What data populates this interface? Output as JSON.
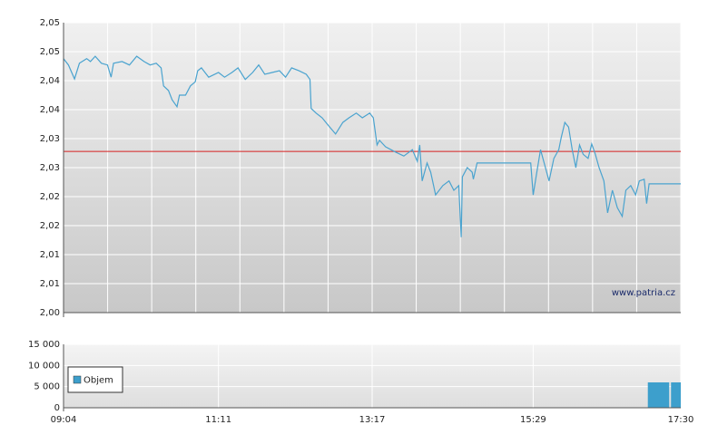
{
  "chart_data": [
    {
      "type": "line",
      "color": "#4aa3cf",
      "xlim": [
        "09:04",
        "17:30"
      ],
      "ylim": [
        2.0,
        2.05
      ],
      "yticks": [
        {
          "value": 2.0,
          "label": "2,00"
        },
        {
          "value": 2.005,
          "label": "2,01"
        },
        {
          "value": 2.01,
          "label": "2,01"
        },
        {
          "value": 2.015,
          "label": "2,02"
        },
        {
          "value": 2.02,
          "label": "2,02"
        },
        {
          "value": 2.025,
          "label": "2,03"
        },
        {
          "value": 2.03,
          "label": "2,03"
        },
        {
          "value": 2.035,
          "label": "2,04"
        },
        {
          "value": 2.04,
          "label": "2,04"
        },
        {
          "value": 2.045,
          "label": "2,05"
        },
        {
          "value": 2.05,
          "label": "2,05"
        }
      ],
      "grid": true,
      "reference_line": 2.0278,
      "reference_color": "#d62020",
      "watermark": "www.patria.cz",
      "x": [
        "09:04",
        "09:08",
        "09:13",
        "09:17",
        "09:23",
        "09:26",
        "09:30",
        "09:35",
        "09:40",
        "09:43",
        "09:45",
        "09:52",
        "09:58",
        "10:04",
        "10:10",
        "10:15",
        "10:20",
        "10:24",
        "10:26",
        "10:30",
        "10:33",
        "10:37",
        "10:39",
        "10:44",
        "10:48",
        "10:52",
        "10:54",
        "10:57",
        "11:03",
        "11:11",
        "11:16",
        "11:22",
        "11:27",
        "11:33",
        "11:39",
        "11:44",
        "11:49",
        "11:55",
        "12:01",
        "12:06",
        "12:11",
        "12:17",
        "12:23",
        "12:26",
        "12:27",
        "12:31",
        "12:36",
        "12:41",
        "12:47",
        "12:53",
        "12:58",
        "13:04",
        "13:09",
        "13:15",
        "13:18",
        "13:21",
        "13:23",
        "13:28",
        "13:36",
        "13:43",
        "13:50",
        "13:54",
        "13:56",
        "13:58",
        "14:02",
        "14:05",
        "14:09",
        "14:15",
        "14:20",
        "14:24",
        "14:28",
        "14:30",
        "14:31",
        "14:35",
        "14:39",
        "14:40",
        "14:43",
        "14:46",
        "15:27",
        "15:29",
        "15:32",
        "15:35",
        "15:38",
        "15:42",
        "15:46",
        "15:50",
        "15:52",
        "15:55",
        "15:58",
        "16:01",
        "16:04",
        "16:07",
        "16:10",
        "16:14",
        "16:17",
        "16:20",
        "16:23",
        "16:27",
        "16:30",
        "16:34",
        "16:38",
        "16:42",
        "16:45",
        "16:49",
        "16:53",
        "16:56",
        "17:00",
        "17:02",
        "17:04",
        "17:30"
      ],
      "values": [
        2.0438,
        2.0427,
        2.0403,
        2.043,
        2.0438,
        2.0433,
        2.0442,
        2.043,
        2.0427,
        2.0406,
        2.043,
        2.0433,
        2.0427,
        2.0442,
        2.0433,
        2.0427,
        2.043,
        2.0422,
        2.0391,
        2.0383,
        2.0367,
        2.0355,
        2.0375,
        2.0375,
        2.0391,
        2.0398,
        2.0417,
        2.0422,
        2.0406,
        2.0414,
        2.0406,
        2.0414,
        2.0422,
        2.0402,
        2.0414,
        2.0427,
        2.0411,
        2.0414,
        2.0417,
        2.0406,
        2.0422,
        2.0417,
        2.0411,
        2.0402,
        2.0352,
        2.0344,
        2.0336,
        2.0323,
        2.0308,
        2.0328,
        2.0336,
        2.0344,
        2.0336,
        2.0344,
        2.0336,
        2.0289,
        2.0297,
        2.0286,
        2.0277,
        2.027,
        2.0281,
        2.0261,
        2.0289,
        2.0227,
        2.0258,
        2.0242,
        2.0203,
        2.0219,
        2.0227,
        2.0211,
        2.0219,
        2.013,
        2.0234,
        2.025,
        2.0242,
        2.023,
        2.0258,
        2.0258,
        2.0258,
        2.0203,
        2.0242,
        2.0281,
        2.0258,
        2.0227,
        2.0266,
        2.0281,
        2.0302,
        2.0328,
        2.032,
        2.0281,
        2.025,
        2.0289,
        2.0273,
        2.0266,
        2.0291,
        2.0273,
        2.025,
        2.0227,
        2.0172,
        2.0211,
        2.0181,
        2.0166,
        2.0211,
        2.0219,
        2.0203,
        2.0227,
        2.023,
        2.0188,
        2.0222,
        2.0222
      ]
    },
    {
      "type": "bar",
      "xlim": [
        "09:04",
        "17:30"
      ],
      "ylim": [
        0,
        15000
      ],
      "yticks": [
        0,
        {
          "value": 5000,
          "label": "5 000"
        },
        {
          "value": 10000,
          "label": "10 000"
        },
        {
          "value": 15000,
          "label": "15 000"
        }
      ],
      "xticks": [
        "09:04",
        "11:11",
        "13:17",
        "15:29",
        "17:30"
      ],
      "grid": true,
      "legend": "left",
      "x": [
        "17:03",
        "17:22"
      ],
      "series": [
        {
          "name": "Objem",
          "color": "#3d9fcc",
          "values": [
            6000,
            6000
          ]
        }
      ]
    }
  ]
}
